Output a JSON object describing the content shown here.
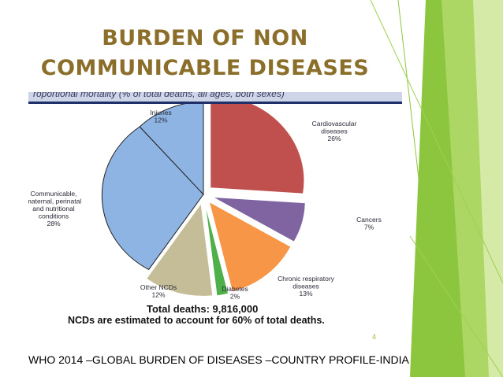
{
  "slide": {
    "title_line1": "BURDEN OF NON",
    "title_line2": "COMMUNICABLE DISEASES",
    "strip_text": "roportional mortality (% of total deaths, all ages, both sexes)",
    "page_number": "4",
    "footer": "WHO 2014 –GLOBAL BURDEN OF DISEASES –COUNTRY PROFILE-INDIA"
  },
  "colors": {
    "title": "#8a6e2a",
    "accent_green": "#8cc63f",
    "strip_border": "#1f2f6a"
  },
  "chart_data": {
    "type": "pie",
    "title": "",
    "unit": "% of total deaths",
    "slices": [
      {
        "label": [
          "Cardiovascular",
          "diseases"
        ],
        "pct_text": "26%",
        "value": 26,
        "color": "#c0504d",
        "exploded": true
      },
      {
        "label": [
          "Cancers"
        ],
        "pct_text": "7%",
        "value": 7,
        "color": "#8064a2",
        "exploded": true
      },
      {
        "label": [
          "Chronic respiratory",
          "diseases"
        ],
        "pct_text": "13%",
        "value": 13,
        "color": "#f79646",
        "exploded": true
      },
      {
        "label": [
          "Diabetes"
        ],
        "pct_text": "2%",
        "value": 2,
        "color": "#4faf48",
        "exploded": true
      },
      {
        "label": [
          "Other NCDs"
        ],
        "pct_text": "12%",
        "value": 12,
        "color": "#c4bd97",
        "exploded": true
      },
      {
        "label": [
          "Communicable,",
          "maternal, perinatal",
          "and nutritional",
          "conditions"
        ],
        "pct_text": "28%",
        "value": 28,
        "color": "#8db4e2",
        "exploded": false
      },
      {
        "label": [
          "Injuries"
        ],
        "pct_text": "12%",
        "value": 12,
        "color": "#8db4e2",
        "exploded": false
      }
    ],
    "total_deaths_text": "Total deaths: 9,816,000",
    "ncd_note_text": "NCDs are estimated to account for 60% of total deaths."
  }
}
